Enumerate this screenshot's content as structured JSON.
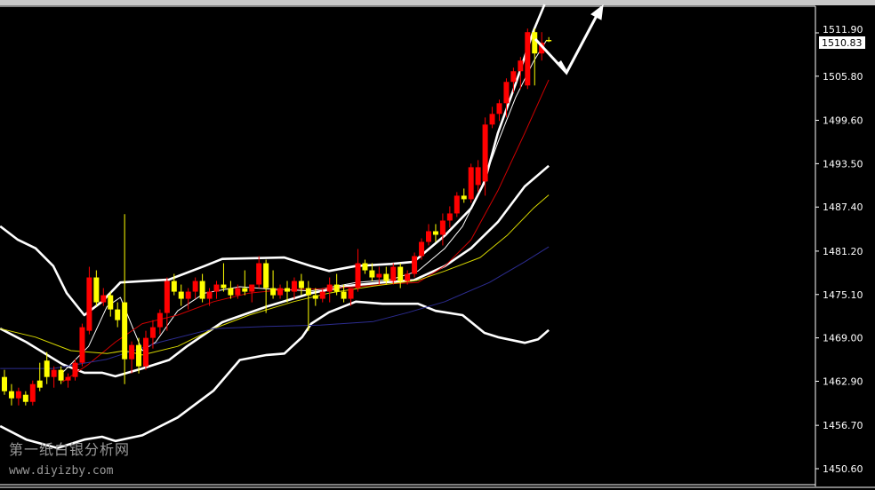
{
  "watermark": {
    "line1": "第一纸白银分析网",
    "line2": "www.diyizby.com"
  },
  "colors": {
    "background": "#000000",
    "bull_candle": "#ff0000",
    "bear_candle": "#ffff00",
    "bollinger": "#ffffff",
    "ma_fast": "#ffffff",
    "ma_red": "#d00000",
    "ma_yellow": "#d8d800",
    "ma_blue": "#2c2c90",
    "axis_text": "#ffffff"
  },
  "chart_data": {
    "type": "candlestick",
    "title": "",
    "xlabel": "",
    "ylabel": "",
    "ylim": [
      1448.2,
      1516.5
    ],
    "grid": false,
    "y_ticks": [
      "1511.90",
      "1505.80",
      "1499.60",
      "1493.50",
      "1487.40",
      "1481.20",
      "1475.10",
      "1469.00",
      "1462.90",
      "1456.70",
      "1450.60"
    ],
    "current_price": "1510.83",
    "candles_ohlc": [
      [
        1463.5,
        1464.5,
        1461,
        1461.5
      ],
      [
        1461.5,
        1462.5,
        1459.5,
        1460.5
      ],
      [
        1460.5,
        1462,
        1459.5,
        1461.5
      ],
      [
        1461,
        1461.5,
        1459.5,
        1460
      ],
      [
        1460,
        1463,
        1459.5,
        1462.5
      ],
      [
        1463,
        1465.5,
        1461.5,
        1462
      ],
      [
        1465.8,
        1467,
        1462.5,
        1463.5
      ],
      [
        1463.5,
        1465,
        1462,
        1464.5
      ],
      [
        1464.5,
        1465,
        1462.5,
        1463
      ],
      [
        1463,
        1464,
        1462,
        1463.5
      ],
      [
        1463.5,
        1466,
        1463,
        1465.5
      ],
      [
        1465.5,
        1471,
        1465,
        1470.5
      ],
      [
        1470,
        1479,
        1469.5,
        1477.5
      ],
      [
        1477.5,
        1478.5,
        1473.5,
        1474
      ],
      [
        1474,
        1476,
        1473.5,
        1475
      ],
      [
        1475,
        1475.5,
        1472,
        1473
      ],
      [
        1473,
        1474,
        1470.5,
        1471.5
      ],
      [
        1474,
        1486.4,
        1462.5,
        1466
      ],
      [
        1466,
        1468.5,
        1464,
        1468
      ],
      [
        1468,
        1469,
        1464,
        1465
      ],
      [
        1465,
        1470,
        1464.5,
        1469
      ],
      [
        1469,
        1471.5,
        1467.5,
        1470.5
      ],
      [
        1470.5,
        1473,
        1469.5,
        1472.5
      ],
      [
        1472.5,
        1477.5,
        1470,
        1477
      ],
      [
        1477,
        1478,
        1475,
        1475.5
      ],
      [
        1475.5,
        1476.5,
        1473.5,
        1474.5
      ],
      [
        1474.5,
        1476,
        1473,
        1475.5
      ],
      [
        1475.5,
        1477.5,
        1474.5,
        1477
      ],
      [
        1477,
        1478,
        1474,
        1474.5
      ],
      [
        1474.5,
        1476,
        1473.5,
        1475.5
      ],
      [
        1475.5,
        1477,
        1474.5,
        1476.5
      ],
      [
        1476.5,
        1479.5,
        1475.5,
        1476
      ],
      [
        1476,
        1477,
        1474.5,
        1475
      ],
      [
        1475,
        1476.5,
        1474.5,
        1476
      ],
      [
        1476,
        1478.5,
        1475,
        1475.5
      ],
      [
        1475.5,
        1476.5,
        1474,
        1476.5
      ],
      [
        1476.5,
        1480.5,
        1476,
        1479.5
      ],
      [
        1479.5,
        1480,
        1472.5,
        1476
      ],
      [
        1476,
        1478.5,
        1474.5,
        1475
      ],
      [
        1475,
        1476.5,
        1474.5,
        1476
      ],
      [
        1476,
        1477,
        1474,
        1475.5
      ],
      [
        1475.5,
        1477.5,
        1474.5,
        1477
      ],
      [
        1477,
        1478,
        1475,
        1476
      ],
      [
        1476,
        1477,
        1470,
        1475
      ],
      [
        1475,
        1476,
        1473.5,
        1474.5
      ],
      [
        1474.5,
        1476,
        1474,
        1475.5
      ],
      [
        1475.5,
        1477.5,
        1474,
        1476.5
      ],
      [
        1476.5,
        1478,
        1475,
        1475.5
      ],
      [
        1475.5,
        1476.5,
        1474,
        1474.5
      ],
      [
        1474.5,
        1476,
        1473.5,
        1476
      ],
      [
        1476,
        1481.5,
        1475.5,
        1479.5
      ],
      [
        1479.5,
        1480,
        1478,
        1478.5
      ],
      [
        1478.5,
        1479.5,
        1477,
        1477.5
      ],
      [
        1477.5,
        1479,
        1476.5,
        1478
      ],
      [
        1478,
        1479,
        1476.5,
        1477
      ],
      [
        1477,
        1479.5,
        1476.5,
        1479
      ],
      [
        1479,
        1479.5,
        1476,
        1477
      ],
      [
        1477,
        1478.5,
        1476.5,
        1478
      ],
      [
        1478,
        1481,
        1477.5,
        1480.5
      ],
      [
        1480.5,
        1483,
        1480,
        1482.5
      ],
      [
        1482.5,
        1485,
        1482,
        1484
      ],
      [
        1484,
        1485,
        1482.5,
        1483.5
      ],
      [
        1483.5,
        1486.5,
        1482,
        1485.5
      ],
      [
        1485.5,
        1487.5,
        1484.5,
        1486.5
      ],
      [
        1486.5,
        1489.5,
        1486,
        1489
      ],
      [
        1489,
        1490,
        1488,
        1488.5
      ],
      [
        1488.5,
        1493.5,
        1488,
        1493
      ],
      [
        1490.5,
        1494,
        1489.5,
        1493
      ],
      [
        1491,
        1500,
        1489,
        1499
      ],
      [
        1499,
        1501.5,
        1498.5,
        1500.5
      ],
      [
        1500.5,
        1502.5,
        1499.5,
        1502
      ],
      [
        1502,
        1505.5,
        1500,
        1505
      ],
      [
        1505,
        1507,
        1503.5,
        1506.5
      ],
      [
        1506.5,
        1508.5,
        1504,
        1508
      ],
      [
        1504.5,
        1512.5,
        1504,
        1512
      ],
      [
        1512,
        1512.5,
        1504.5,
        1509
      ],
      [
        1509,
        1512,
        1508,
        1510.5
      ],
      [
        1510.9,
        1511.3,
        1510.6,
        1510.8
      ]
    ],
    "indicators": [
      {
        "kind": "bollinger-upper",
        "color": "#ffffff",
        "points": [
          [
            -0.6,
            1484.7
          ],
          [
            1.9,
            1482.8
          ],
          [
            4.4,
            1481.6
          ],
          [
            6.9,
            1479.1
          ],
          [
            8.8,
            1475.3
          ],
          [
            11.3,
            1472.2
          ],
          [
            13.8,
            1474.1
          ],
          [
            16.4,
            1476.8
          ],
          [
            23.3,
            1477.2
          ],
          [
            28.3,
            1479.1
          ],
          [
            30.8,
            1480.1
          ],
          [
            39.6,
            1480.3
          ],
          [
            43.4,
            1479.1
          ],
          [
            45.9,
            1478.4
          ],
          [
            49.7,
            1479.1
          ],
          [
            54.7,
            1479.4
          ],
          [
            57.9,
            1479.7
          ],
          [
            62.3,
            1483.4
          ],
          [
            66,
            1487.2
          ],
          [
            67.9,
            1490.9
          ],
          [
            69.8,
            1497.8
          ],
          [
            72.3,
            1504.7
          ],
          [
            74.8,
            1512.1
          ],
          [
            76.4,
            1515.9
          ]
        ]
      },
      {
        "kind": "bollinger-middle",
        "color": "#ffffff",
        "points": [
          [
            -0.6,
            1470.3
          ],
          [
            3.1,
            1468.4
          ],
          [
            8.2,
            1465.3
          ],
          [
            11.3,
            1464.1
          ],
          [
            13.8,
            1464.1
          ],
          [
            15.7,
            1463.6
          ],
          [
            19.5,
            1464.7
          ],
          [
            23.3,
            1465.9
          ],
          [
            25.8,
            1467.8
          ],
          [
            30.8,
            1471.2
          ],
          [
            37.1,
            1473.4
          ],
          [
            43.4,
            1475.3
          ],
          [
            48.4,
            1476.3
          ],
          [
            53.5,
            1476.8
          ],
          [
            57.9,
            1477.1
          ],
          [
            62.3,
            1479.1
          ],
          [
            66,
            1481.6
          ],
          [
            69.8,
            1485.3
          ],
          [
            73.6,
            1490.3
          ],
          [
            77,
            1493.2
          ]
        ]
      },
      {
        "kind": "bollinger-lower",
        "color": "#ffffff",
        "points": [
          [
            -0.6,
            1456.6
          ],
          [
            3.1,
            1454.7
          ],
          [
            7.5,
            1453.5
          ],
          [
            11.3,
            1454.7
          ],
          [
            13.8,
            1455.1
          ],
          [
            15.7,
            1454.5
          ],
          [
            19.5,
            1455.3
          ],
          [
            24.5,
            1457.8
          ],
          [
            29.6,
            1461.6
          ],
          [
            33.3,
            1465.9
          ],
          [
            37.1,
            1466.6
          ],
          [
            39.6,
            1466.8
          ],
          [
            42.1,
            1469.1
          ],
          [
            43.4,
            1471
          ],
          [
            45.9,
            1472.6
          ],
          [
            49.7,
            1474.1
          ],
          [
            53.5,
            1473.8
          ],
          [
            58.5,
            1473.8
          ],
          [
            61,
            1472.8
          ],
          [
            64.8,
            1472.2
          ],
          [
            67.9,
            1469.7
          ],
          [
            69.8,
            1469.1
          ],
          [
            73.6,
            1468.3
          ],
          [
            75.5,
            1468.8
          ],
          [
            77,
            1470.1
          ]
        ]
      },
      {
        "kind": "ma-fast",
        "color": "#ffffff",
        "points": [
          [
            8.2,
            1464.1
          ],
          [
            11.9,
            1467.8
          ],
          [
            14.5,
            1473.4
          ],
          [
            16.4,
            1474.7
          ],
          [
            18.2,
            1470.3
          ],
          [
            19.5,
            1467.2
          ],
          [
            21.4,
            1468.4
          ],
          [
            24.5,
            1472.8
          ],
          [
            28.3,
            1475.3
          ],
          [
            33.3,
            1476.2
          ],
          [
            37.1,
            1475.9
          ],
          [
            43.4,
            1475.6
          ],
          [
            49.7,
            1476.8
          ],
          [
            54.7,
            1477.2
          ],
          [
            58.5,
            1478.4
          ],
          [
            62.3,
            1481.6
          ],
          [
            64.8,
            1484.7
          ],
          [
            67.3,
            1489.7
          ],
          [
            69.8,
            1496.5
          ],
          [
            72.3,
            1502.8
          ],
          [
            74.8,
            1507.8
          ],
          [
            76.7,
            1510.9
          ]
        ]
      },
      {
        "kind": "ma-red",
        "color": "#d00000",
        "points": [
          [
            8.2,
            1462.8
          ],
          [
            11.9,
            1465.3
          ],
          [
            15.7,
            1468.4
          ],
          [
            19.5,
            1471
          ],
          [
            24.5,
            1472.2
          ],
          [
            29.6,
            1474.1
          ],
          [
            34.6,
            1475.3
          ],
          [
            39.6,
            1475.8
          ],
          [
            44.7,
            1475.9
          ],
          [
            49.7,
            1476.2
          ],
          [
            54.7,
            1476.6
          ],
          [
            58.5,
            1476.8
          ],
          [
            62.3,
            1479.1
          ],
          [
            66,
            1482.8
          ],
          [
            69.8,
            1489.7
          ],
          [
            73.6,
            1497.8
          ],
          [
            77,
            1505.3
          ]
        ]
      },
      {
        "kind": "ma-yellow",
        "color": "#d8d800",
        "points": [
          [
            -0.6,
            1470.3
          ],
          [
            4.4,
            1469.1
          ],
          [
            9.4,
            1467.2
          ],
          [
            14.5,
            1466.8
          ],
          [
            17,
            1467.2
          ],
          [
            19.5,
            1466.6
          ],
          [
            24.5,
            1467.8
          ],
          [
            29.6,
            1470.3
          ],
          [
            34.6,
            1472.2
          ],
          [
            40.9,
            1474.1
          ],
          [
            45.9,
            1475.3
          ],
          [
            52.2,
            1476.3
          ],
          [
            58.5,
            1477.1
          ],
          [
            62.3,
            1478.4
          ],
          [
            67.3,
            1480.3
          ],
          [
            71.1,
            1483.4
          ],
          [
            74.8,
            1487.2
          ],
          [
            77,
            1489.1
          ]
        ]
      },
      {
        "kind": "ma-blue",
        "color": "#2c2c90",
        "points": [
          [
            -0.6,
            1464.7
          ],
          [
            6.9,
            1464.7
          ],
          [
            14.5,
            1466
          ],
          [
            22,
            1468.4
          ],
          [
            29.6,
            1470.3
          ],
          [
            37.1,
            1470.6
          ],
          [
            44.7,
            1470.8
          ],
          [
            52.2,
            1471.3
          ],
          [
            57.2,
            1472.6
          ],
          [
            62.3,
            1474.1
          ],
          [
            68.6,
            1476.8
          ],
          [
            73.6,
            1479.7
          ],
          [
            77,
            1481.8
          ]
        ]
      }
    ],
    "annotation": "forecast-arrow"
  }
}
